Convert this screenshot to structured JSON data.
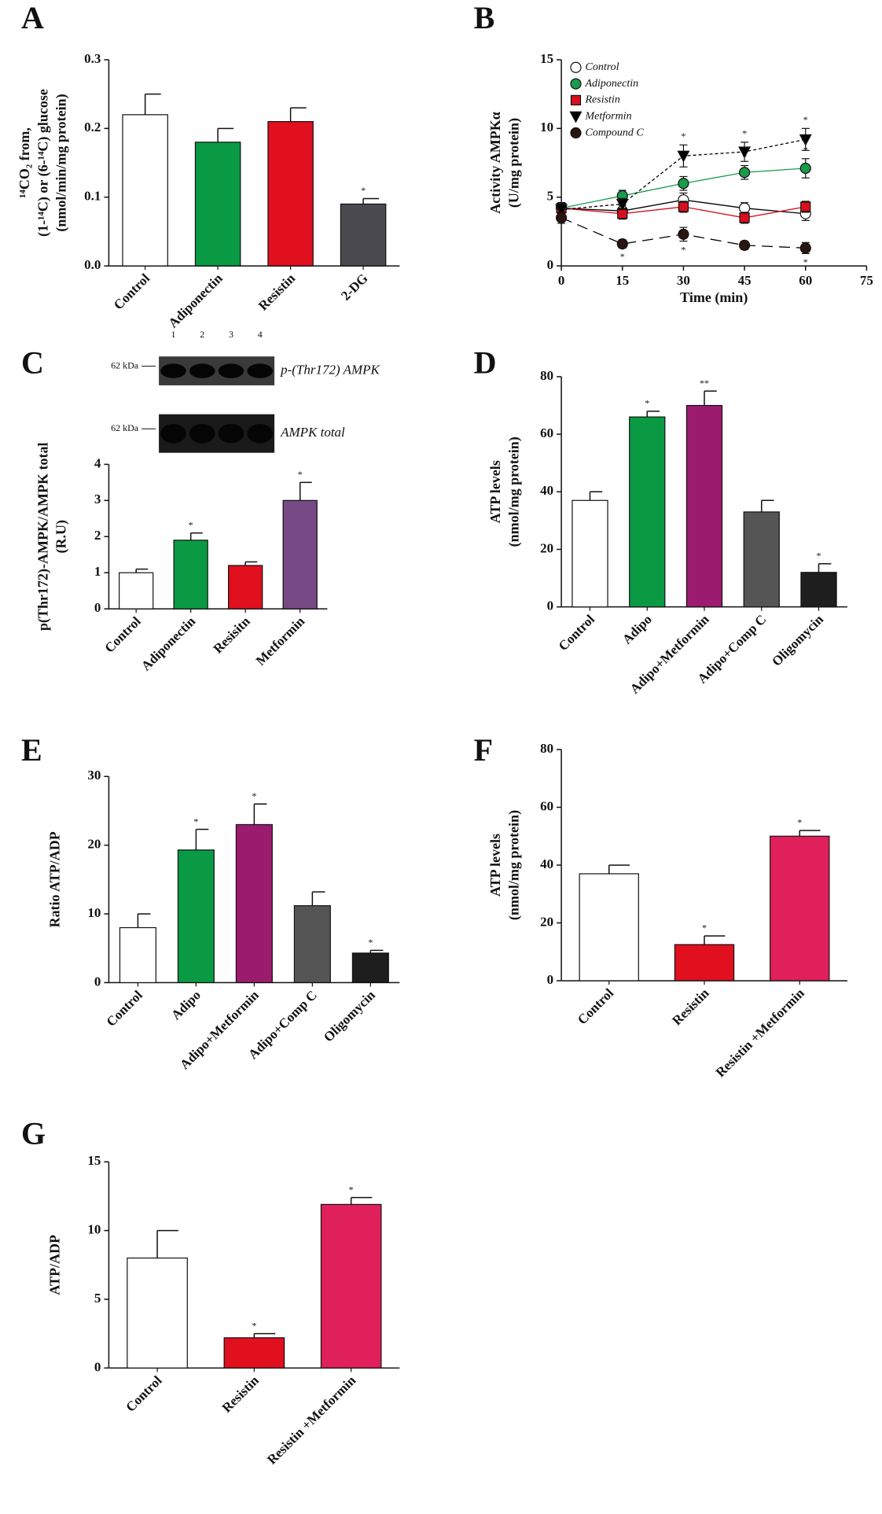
{
  "chart_data": [
    {
      "type": "bar",
      "panel": "A",
      "y_label": [
        "¹⁴CO₂ from,",
        "(1-¹⁴C) or (6-¹⁴C) glucose",
        "(nmol/min/mg protein)"
      ],
      "categories": [
        "Control",
        "Adiponectin",
        "Resistin",
        "2-DG"
      ],
      "values": [
        0.22,
        0.18,
        0.21,
        0.09
      ],
      "errors": [
        0.03,
        0.02,
        0.02,
        0.008
      ],
      "colors": [
        "#ffffff",
        "#0a9a44",
        "#e0101e",
        "#4a4a50"
      ],
      "significance": [
        null,
        null,
        null,
        "*"
      ],
      "ylim": [
        0,
        0.3
      ],
      "yticks": [
        {
          "value": 0,
          "label": "0.0"
        },
        0.1,
        0.2,
        0.3
      ]
    },
    {
      "type": "line",
      "panel": "B",
      "y_label": [
        "Activity AMPKα",
        "(U/mg protein)"
      ],
      "x_label": "Time (min)",
      "x": [
        0,
        15,
        30,
        45,
        60
      ],
      "series": [
        {
          "name": "Control",
          "color": "#ffffff",
          "line_color": "#000000",
          "line_style": "solid",
          "marker": "circle",
          "values": [
            4.2,
            4.0,
            4.8,
            4.2,
            3.8
          ],
          "errors": [
            0.4,
            0.4,
            0.5,
            0.4,
            0.5
          ],
          "significance": [
            null,
            null,
            null,
            null,
            null
          ]
        },
        {
          "name": "Adiponectin",
          "color": "#1a9a4a",
          "line_color": "#1a9a4a",
          "line_style": "solid",
          "marker": "circle",
          "values": [
            4.2,
            5.1,
            6.0,
            6.8,
            7.1
          ],
          "errors": [
            0.4,
            0.4,
            0.5,
            0.5,
            0.7
          ],
          "significance": [
            null,
            null,
            null,
            "*",
            "*"
          ]
        },
        {
          "name": "Resistin",
          "color": "#d8101e",
          "line_color": "#d8101e",
          "line_style": "solid",
          "marker": "square",
          "values": [
            4.2,
            3.8,
            4.3,
            3.5,
            4.3
          ],
          "errors": [
            0.4,
            0.4,
            0.4,
            0.4,
            0.4
          ],
          "significance": [
            null,
            null,
            null,
            null,
            null
          ]
        },
        {
          "name": "Metformin",
          "color": "#000000",
          "line_color": "#000000",
          "line_style": "dotted",
          "marker": "triangle-down",
          "values": [
            4.1,
            4.5,
            8.0,
            8.3,
            9.2
          ],
          "errors": [
            0.4,
            0.4,
            0.8,
            0.7,
            0.8
          ],
          "significance": [
            null,
            null,
            "*",
            "*",
            "*"
          ]
        },
        {
          "name": "Compound C",
          "color": "#2a1510",
          "line_color": "#000000",
          "line_style": "dashed",
          "marker": "circle",
          "values": [
            3.5,
            1.6,
            2.3,
            1.5,
            1.3
          ],
          "errors": [
            0.4,
            0.3,
            0.5,
            0.3,
            0.4
          ],
          "significance": [
            null,
            "*",
            "*",
            null,
            "*"
          ],
          "significance_side": "below"
        }
      ],
      "xlim": [
        0,
        75
      ],
      "xticks": [
        0,
        15,
        30,
        45,
        60,
        75
      ],
      "ylim": [
        0,
        15
      ],
      "yticks": [
        0,
        5,
        10,
        15
      ],
      "legend": "upper-left"
    },
    {
      "type": "bar",
      "panel": "C",
      "y_label": [
        "p(Thr172)-AMPK/AMPK total",
        "(R.U)"
      ],
      "categories": [
        "Control",
        "Adiponectin",
        "Resisitn",
        "Metformin"
      ],
      "values": [
        1.0,
        1.9,
        1.2,
        3.0
      ],
      "errors": [
        0.1,
        0.2,
        0.1,
        0.5
      ],
      "colors": [
        "#ffffff",
        "#0a9a44",
        "#e0101e",
        "#774a85"
      ],
      "significance": [
        null,
        "*",
        null,
        "*"
      ],
      "ylim": [
        0,
        4
      ],
      "yticks": [
        0,
        1,
        2,
        3,
        4
      ],
      "blot": {
        "lanes": [
          "1",
          "2",
          "3",
          "4"
        ],
        "marker": "62 kDa",
        "bands": [
          "p-(Thr172) AMPK",
          "AMPK total"
        ]
      }
    },
    {
      "type": "bar",
      "panel": "D",
      "y_label": [
        "ATP levels",
        "(nmol/mg protein)"
      ],
      "categories": [
        "Control",
        "Adipo",
        "Adipo+Metformin",
        "Adipo+Comp C",
        "Oligomycin"
      ],
      "values": [
        37,
        66,
        70,
        33,
        12
      ],
      "errors": [
        3,
        2,
        5,
        4,
        3
      ],
      "colors": [
        "#ffffff",
        "#0a9a44",
        "#9b1c6e",
        "#555555",
        "#1e1e1e"
      ],
      "significance": [
        null,
        "*",
        "**",
        null,
        "*"
      ],
      "ylim": [
        0,
        80
      ],
      "yticks": [
        0,
        20,
        40,
        60,
        80
      ]
    },
    {
      "type": "bar",
      "panel": "E",
      "y_label": [
        "Ratio ATP/ADP"
      ],
      "categories": [
        "Control",
        "Adipo",
        "Adipo+Metformin",
        "Adipo+Comp C",
        "Oligomycin"
      ],
      "values": [
        8,
        19.3,
        23,
        11.2,
        4.3
      ],
      "errors": [
        2,
        3,
        3,
        2,
        0.4
      ],
      "colors": [
        "#ffffff",
        "#0a9a44",
        "#9b1c6e",
        "#555555",
        "#1e1e1e"
      ],
      "significance": [
        null,
        "*",
        "*",
        null,
        "*"
      ],
      "ylim": [
        0,
        30
      ],
      "yticks": [
        0,
        10,
        20,
        30
      ]
    },
    {
      "type": "bar",
      "panel": "F",
      "y_label": [
        "ATP levels",
        "(nmol/mg protein)"
      ],
      "categories": [
        "Control",
        "Resistin",
        "Resistin +Metformin"
      ],
      "values": [
        37,
        12.5,
        50
      ],
      "errors": [
        3,
        3,
        2
      ],
      "colors": [
        "#ffffff",
        "#e0101e",
        "#e0205a"
      ],
      "significance": [
        null,
        "*",
        "*"
      ],
      "ylim": [
        0,
        80
      ],
      "yticks": [
        0,
        20,
        40,
        60,
        80
      ]
    },
    {
      "type": "bar",
      "panel": "G",
      "y_label": [
        "ATP/ADP"
      ],
      "categories": [
        "Control",
        "Resistin",
        "Resistin +Metformin"
      ],
      "values": [
        8,
        2.2,
        11.9
      ],
      "errors": [
        2,
        0.3,
        0.5
      ],
      "colors": [
        "#ffffff",
        "#e0101e",
        "#e0205a"
      ],
      "significance": [
        null,
        "*",
        "*"
      ],
      "ylim": [
        0,
        15
      ],
      "yticks": [
        0,
        5,
        10,
        15
      ]
    }
  ]
}
